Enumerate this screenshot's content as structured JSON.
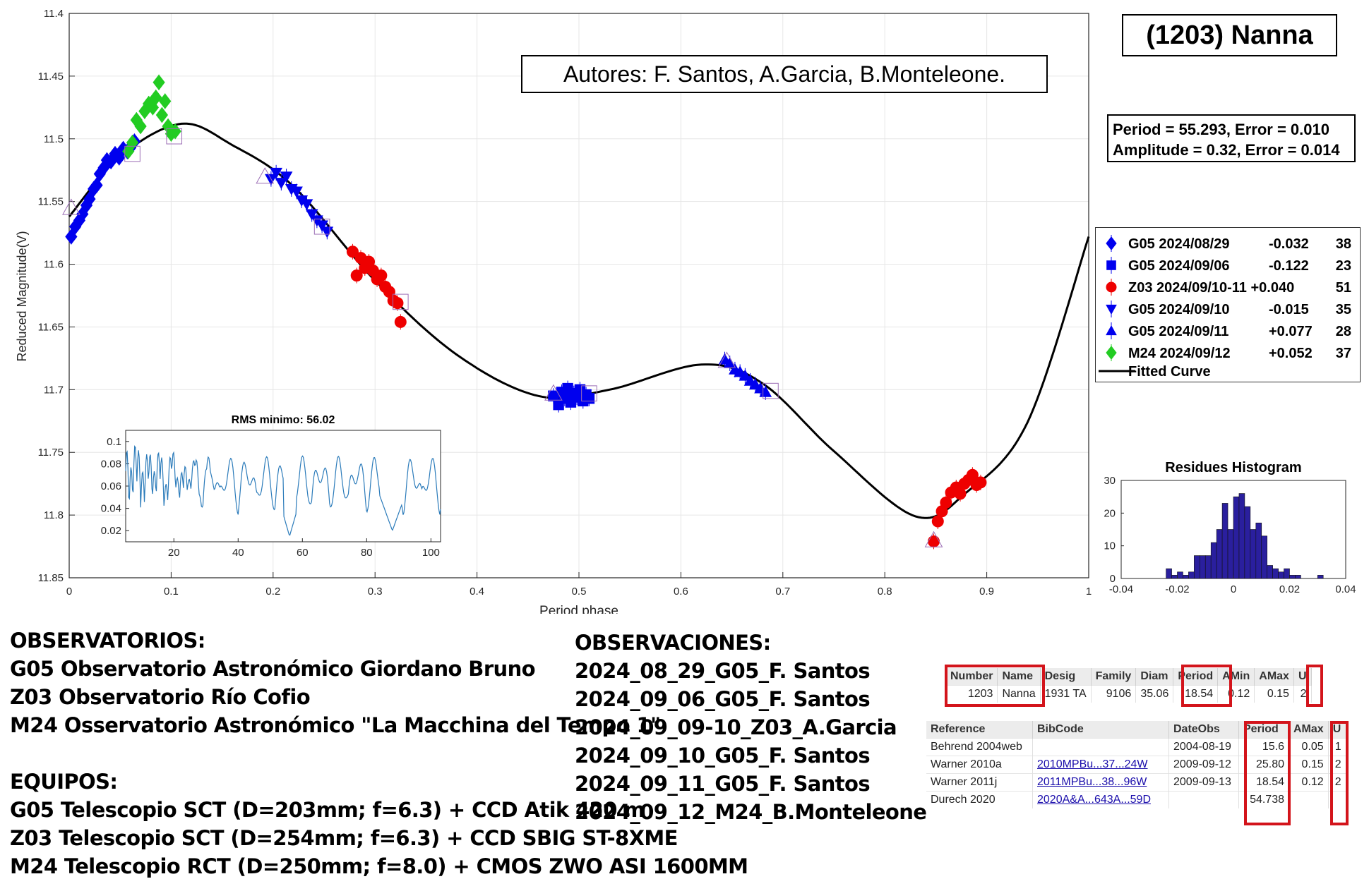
{
  "chart_data": [
    {
      "type": "scatter",
      "title": "(1203) Nanna",
      "authors": "Autores: F. Santos, A.Garcia, B.Monteleone.",
      "xlabel": "Period phase",
      "ylabel": "Reduced Magnitude(V)",
      "xlim": [
        0,
        1
      ],
      "ylim": [
        11.85,
        11.4
      ],
      "y_reversed": true,
      "xticks": [
        "0",
        "0.1",
        "0.2",
        "0.3",
        "0.4",
        "0.5",
        "0.6",
        "0.7",
        "0.8",
        "0.9",
        "1"
      ],
      "yticks": [
        "11.4",
        "11.45",
        "11.5",
        "11.55",
        "11.6",
        "11.65",
        "11.7",
        "11.75",
        "11.8",
        "11.85"
      ],
      "grid": true,
      "legend_position": "right",
      "period_text": "Period =  55.293, Error = 0.010",
      "amplitude_text": "Amplitude = 0.32, Error = 0.014",
      "series": [
        {
          "name": "G05 2024/08/29",
          "offset": "-0.032",
          "count": "38",
          "marker": "diamond",
          "color": "#0000ee",
          "x": [
            0.002,
            0.006,
            0.01,
            0.013,
            0.017,
            0.02,
            0.024,
            0.027,
            0.03,
            0.034,
            0.037,
            0.041,
            0.045,
            0.049,
            0.053,
            0.057,
            0.06,
            0.064
          ],
          "y": [
            11.578,
            11.57,
            11.565,
            11.56,
            11.553,
            11.548,
            11.54,
            11.537,
            11.528,
            11.523,
            11.517,
            11.518,
            11.512,
            11.515,
            11.508,
            11.51,
            11.507,
            11.502
          ]
        },
        {
          "name": "G05 2024/09/06",
          "offset": "-0.122",
          "count": "23",
          "marker": "square",
          "color": "#0000ee",
          "x": [
            0.475,
            0.48,
            0.483,
            0.486,
            0.489,
            0.492,
            0.495,
            0.498,
            0.501,
            0.504,
            0.507,
            0.51
          ],
          "y": [
            11.705,
            11.712,
            11.702,
            11.707,
            11.699,
            11.71,
            11.703,
            11.706,
            11.7,
            11.709,
            11.704,
            11.707
          ]
        },
        {
          "name": "Z03 2024/09/10-11 +0.040",
          "count": "51",
          "marker": "circle",
          "color": "#ee0000",
          "x": [
            0.278,
            0.282,
            0.286,
            0.29,
            0.294,
            0.298,
            0.302,
            0.306,
            0.31,
            0.314,
            0.318,
            0.322,
            0.325,
            0.848,
            0.852,
            0.856,
            0.86,
            0.865,
            0.87,
            0.874,
            0.878,
            0.882,
            0.886,
            0.89,
            0.894
          ],
          "y": [
            11.59,
            11.609,
            11.595,
            11.603,
            11.598,
            11.605,
            11.612,
            11.609,
            11.618,
            11.622,
            11.629,
            11.631,
            11.646,
            11.821,
            11.805,
            11.797,
            11.79,
            11.782,
            11.778,
            11.783,
            11.775,
            11.772,
            11.768,
            11.776,
            11.774
          ]
        },
        {
          "name": "G05 2024/09/10",
          "offset": "-0.015",
          "count": "35",
          "marker": "triangle-down",
          "color": "#0000ee",
          "x": [
            0.198,
            0.203,
            0.208,
            0.213,
            0.218,
            0.223,
            0.228,
            0.233,
            0.238,
            0.243,
            0.248,
            0.253
          ],
          "y": [
            11.532,
            11.527,
            11.535,
            11.53,
            11.54,
            11.542,
            11.549,
            11.552,
            11.56,
            11.565,
            11.569,
            11.574
          ]
        },
        {
          "name": "G05 2024/09/11",
          "offset": "+0.077",
          "count": "28",
          "marker": "triangle-up",
          "color": "#0000ee",
          "x": [
            0.643,
            0.648,
            0.653,
            0.658,
            0.663,
            0.668,
            0.673,
            0.678,
            0.683
          ],
          "y": [
            11.676,
            11.679,
            11.684,
            11.686,
            11.689,
            11.693,
            11.696,
            11.699,
            11.702
          ]
        },
        {
          "name": "M24 2024/09/12",
          "offset": "+0.052",
          "count": "37",
          "marker": "diamond",
          "color": "#22cc22",
          "x": [
            0.058,
            0.062,
            0.066,
            0.07,
            0.074,
            0.078,
            0.082,
            0.085,
            0.088,
            0.091,
            0.094,
            0.097,
            0.1,
            0.104
          ],
          "y": [
            11.51,
            11.503,
            11.485,
            11.49,
            11.478,
            11.472,
            11.475,
            11.467,
            11.455,
            11.481,
            11.47,
            11.49,
            11.496,
            11.494
          ]
        }
      ],
      "fitted_curve_label": "Fitted Curve"
    },
    {
      "type": "line",
      "title": "RMS minimo: 56.02",
      "xlim": [
        5,
        103
      ],
      "ylim": [
        0.01,
        0.11
      ],
      "xticks": [
        "20",
        "40",
        "60",
        "80",
        "100"
      ],
      "yticks": [
        "0.02",
        "0.04",
        "0.06",
        "0.08",
        "0.1"
      ],
      "color": "#2b7bba"
    },
    {
      "type": "bar",
      "title": "Residues Histogram",
      "xlim": [
        -0.04,
        0.04
      ],
      "ylim": [
        0,
        30
      ],
      "xticks": [
        "-0.04",
        "-0.02",
        "0",
        "0.02",
        "0.04"
      ],
      "yticks": [
        "0",
        "10",
        "20",
        "30"
      ],
      "color": "#2a1f9e",
      "bin_width": 0.002,
      "bin_starts": [
        -0.024,
        -0.022,
        -0.02,
        -0.018,
        -0.016,
        -0.014,
        -0.012,
        -0.01,
        -0.008,
        -0.006,
        -0.004,
        -0.002,
        0.0,
        0.002,
        0.004,
        0.006,
        0.008,
        0.01,
        0.012,
        0.014,
        0.016,
        0.018,
        0.02,
        0.022,
        0.024,
        0.03
      ],
      "values": [
        3,
        1,
        2,
        1,
        2,
        7,
        7,
        7,
        11,
        15,
        23,
        15,
        25,
        26,
        22,
        15,
        17,
        13,
        4,
        3,
        2,
        3,
        1,
        1,
        0,
        1
      ]
    }
  ],
  "observatorios": {
    "heading": "OBSERVATORIOS:",
    "lines": [
      "G05 Observatorio Astronómico Giordano Bruno",
      "Z03 Observatorio Río Cofio",
      "M24 Osservatorio Astronómico \"La Macchina del Tempo 1\""
    ]
  },
  "equipos": {
    "heading": "EQUIPOS:",
    "lines": [
      "G05 Telescopio SCT (D=203mm; f=6.3) + CCD Atik 420 m",
      "Z03 Telescopio SCT (D=254mm; f=6.3) + CCD SBIG ST-8XME",
      "M24 Telescopio RCT (D=250mm; f=8.0) + CMOS ZWO ASI 1600MM"
    ]
  },
  "observaciones": {
    "heading": "OBSERVACIONES:",
    "lines": [
      "2024_08_29_G05_F. Santos",
      "2024_09_06_G05_F. Santos",
      "2024_09_09-10_Z03_A.Garcia",
      "2024_09_10_G05_F. Santos",
      "2024_09_11_G05_F. Santos",
      "2024_09_12_M24_B.Monteleone"
    ]
  },
  "lcdb_summary": {
    "headers": [
      "Number",
      "Name",
      "Desig",
      "Family",
      "Diam",
      "Period",
      "AMin",
      "AMax",
      "U"
    ],
    "row": [
      "1203",
      "Nanna",
      "1931 TA",
      "9106",
      "35.06",
      "18.54",
      "0.12",
      "0.15",
      "2"
    ]
  },
  "lcdb_details": {
    "headers": [
      "Reference",
      "BibCode",
      "DateObs",
      "Period",
      "AMax",
      "U"
    ],
    "rows": [
      [
        "Behrend 2004web",
        "",
        "2004-08-19",
        "15.6",
        "0.05",
        "1"
      ],
      [
        "Warner 2010a",
        "2010MPBu...37...24W",
        "2009-09-12",
        "25.80",
        "0.15",
        "2"
      ],
      [
        "Warner 2011j",
        "2011MPBu...38...96W",
        "2009-09-13",
        "18.54",
        "0.12",
        "2"
      ],
      [
        "Durech 2020",
        "2020A&A...643A...59D",
        "",
        "54.738",
        "",
        ""
      ]
    ]
  }
}
